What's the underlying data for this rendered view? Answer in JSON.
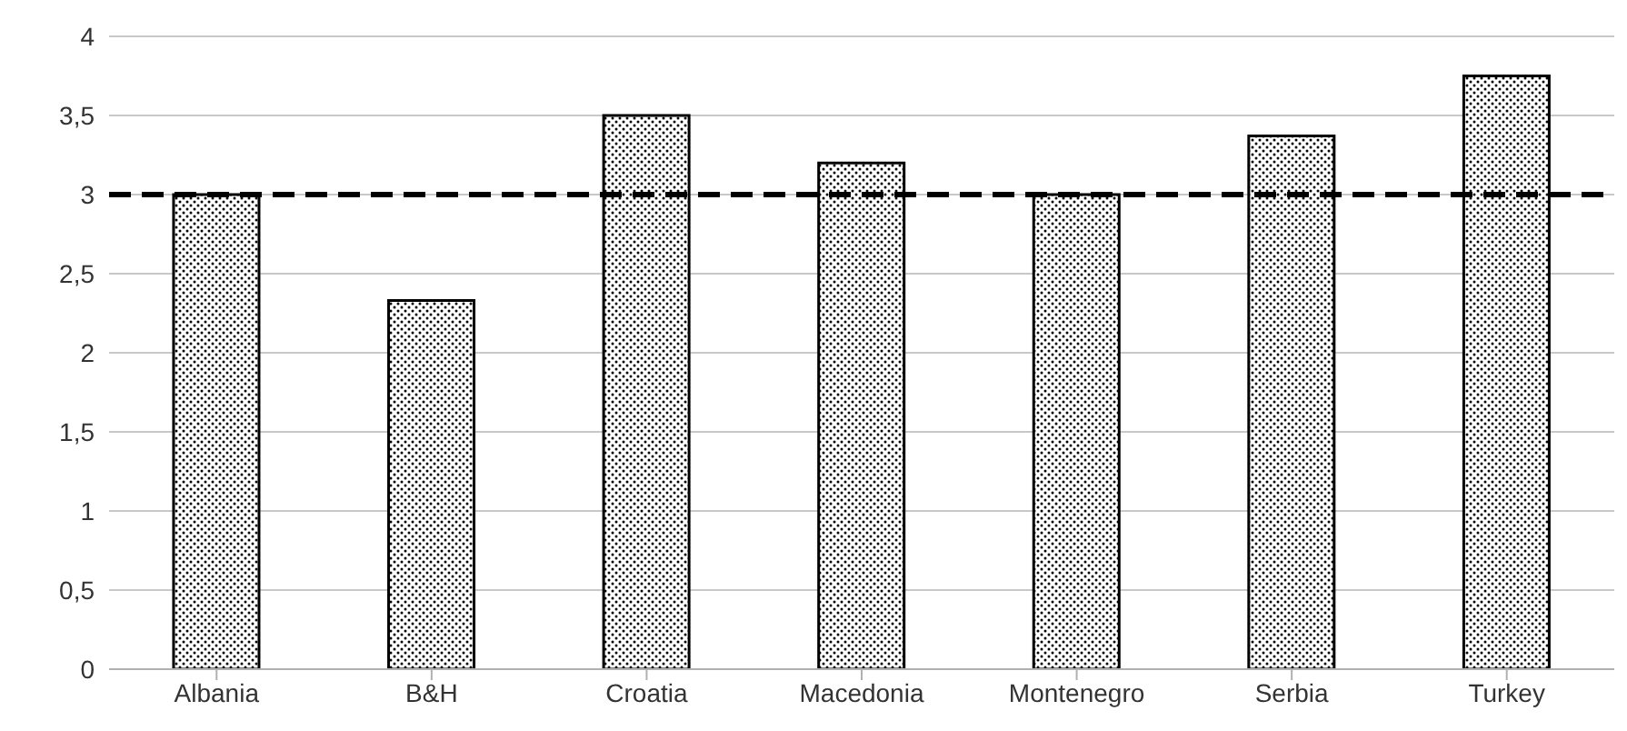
{
  "chart_data": {
    "type": "bar",
    "categories": [
      "Albania",
      "B&H",
      "Croatia",
      "Macedonia",
      "Montenegro",
      "Serbia",
      "Turkey"
    ],
    "values": [
      3.0,
      2.33,
      3.5,
      3.2,
      3.0,
      3.37,
      3.75
    ],
    "color": "#000000",
    "ylim": [
      0,
      4
    ],
    "yticks": [
      0,
      {
        "value": 0.5,
        "label": "0,5"
      },
      1,
      {
        "value": 1.5,
        "label": "1,5"
      },
      2,
      {
        "value": 2.5,
        "label": "2,5"
      },
      3,
      {
        "value": 3.5,
        "label": "3,5"
      },
      4
    ],
    "grid": "y",
    "ref_lines": [
      {
        "axis": "y",
        "value": 3,
        "color": "#000000",
        "line_style": "dashed"
      }
    ]
  }
}
